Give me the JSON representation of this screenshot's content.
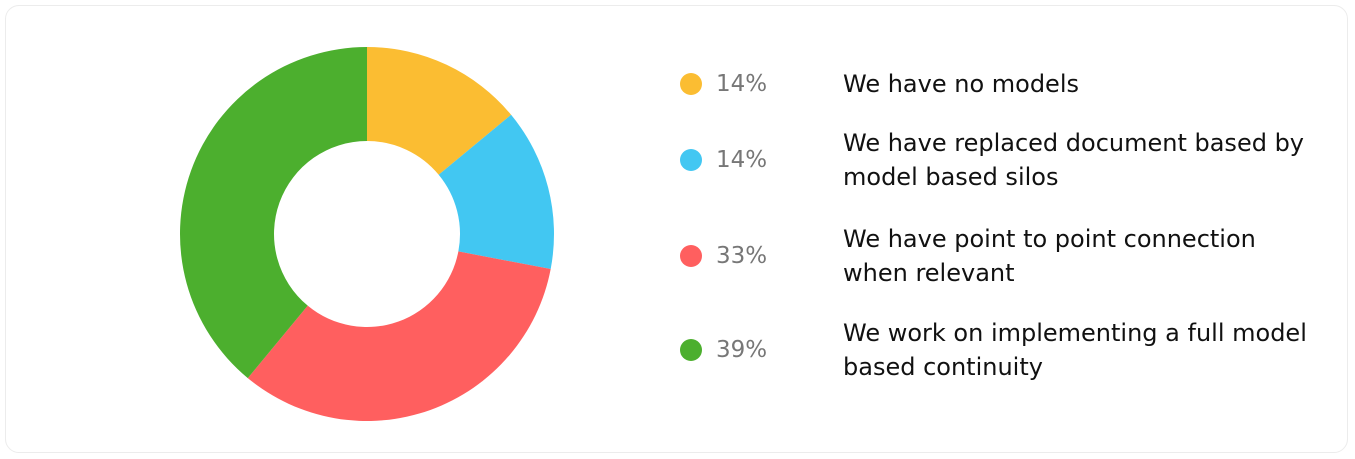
{
  "chart_data": {
    "type": "donut",
    "categories": [
      "We have no models",
      "We have replaced document based by model based silos",
      "We have point to point connection when relevant",
      "We work on implementing a full model based continuity"
    ],
    "values": [
      14,
      14,
      33,
      39
    ],
    "value_labels": [
      "14%",
      "14%",
      "33%",
      "39%"
    ],
    "colors": [
      "#fbbd32",
      "#42c7f2",
      "#ff5f5f",
      "#4caf2e"
    ]
  }
}
